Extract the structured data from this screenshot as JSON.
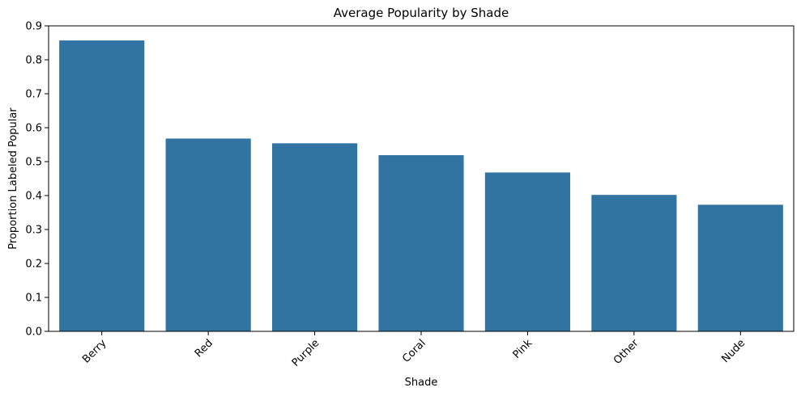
{
  "chart_data": {
    "type": "bar",
    "title": "Average Popularity by Shade",
    "xlabel": "Shade",
    "ylabel": "Proportion Labeled Popular",
    "categories": [
      "Berry",
      "Red",
      "Purple",
      "Coral",
      "Pink",
      "Other",
      "Nude"
    ],
    "values": [
      0.857,
      0.568,
      0.554,
      0.519,
      0.468,
      0.402,
      0.373
    ],
    "ylim": [
      0,
      0.9
    ],
    "yticks": [
      "0.0",
      "0.1",
      "0.2",
      "0.3",
      "0.4",
      "0.5",
      "0.6",
      "0.7",
      "0.8",
      "0.9"
    ],
    "grid": false,
    "bar_color": "#3274a1",
    "x_tick_rotation_deg": 45
  }
}
